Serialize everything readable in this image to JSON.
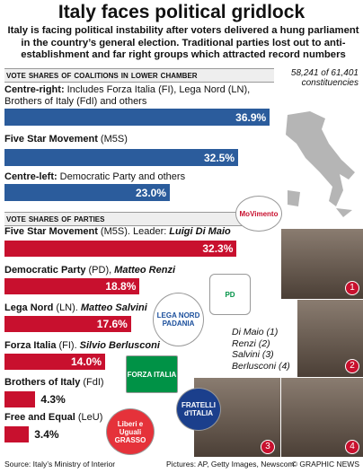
{
  "chart_data": {
    "type": "bar",
    "title": "Italy faces political gridlock",
    "subtitle": "Italy is facing political instability after voters delivered a hung parliament in the country’s general election. Traditional parties lost out to anti-establishment and far right groups which attracted record numbers",
    "note": "58,241 of 61,401 constituencies",
    "coalitions": {
      "heading": "Vote Shares of Coalitions in Lower Chamber",
      "color": "#2b5c9c",
      "names": [
        "Centre-right:",
        "Five Star Movement",
        "Centre-left:"
      ],
      "descriptions": [
        "Includes Forza Italia (FI), Lega Nord (LN), Brothers of Italy (FdI) and others",
        "(M5S)",
        "Democratic Party and others"
      ],
      "values": [
        36.9,
        32.5,
        23.0
      ],
      "value_labels": [
        "36.9%",
        "32.5%",
        "23.0%"
      ]
    },
    "parties": {
      "heading": "Vote Shares of Parties",
      "color": "#c8102e",
      "names": [
        "Five Star Movement",
        "Democratic Party",
        "Lega Nord",
        "Forza Italia",
        "Brothers of Italy",
        "Free and Equal"
      ],
      "descriptions": [
        "(M5S). Leader:",
        "(PD),",
        "(LN).",
        "(FI).",
        "(FdI)",
        "(LeU)"
      ],
      "leaders": [
        "Luigi Di Maio",
        "Matteo Renzi",
        "Matteo Salvini",
        "Silvio Berlusconi",
        null,
        null
      ],
      "values": [
        32.3,
        18.8,
        17.6,
        14.0,
        4.3,
        3.4
      ],
      "value_labels": [
        "32.3%",
        "18.8%",
        "17.6%",
        "14.0%",
        "4.3%",
        "3.4%"
      ]
    },
    "photo_legend": [
      "Di Maio (1)",
      "Renzi (2)",
      "Salvini (3)",
      "Berlusconi (4)"
    ],
    "photo_numbers": [
      "1",
      "2",
      "3",
      "4"
    ],
    "logos": [
      "MoVimento",
      "PD",
      "LEGA NORD PADANIA",
      "FORZA ITALIA",
      "FRATELLI d'ITALIA",
      "Liberi e Uguali GRASSO"
    ],
    "source": "Source: Italy’s Ministry of Interior",
    "credits": "Pictures: AP, Getty Images, Newscom",
    "copyright": "© GRAPHIC NEWS"
  }
}
